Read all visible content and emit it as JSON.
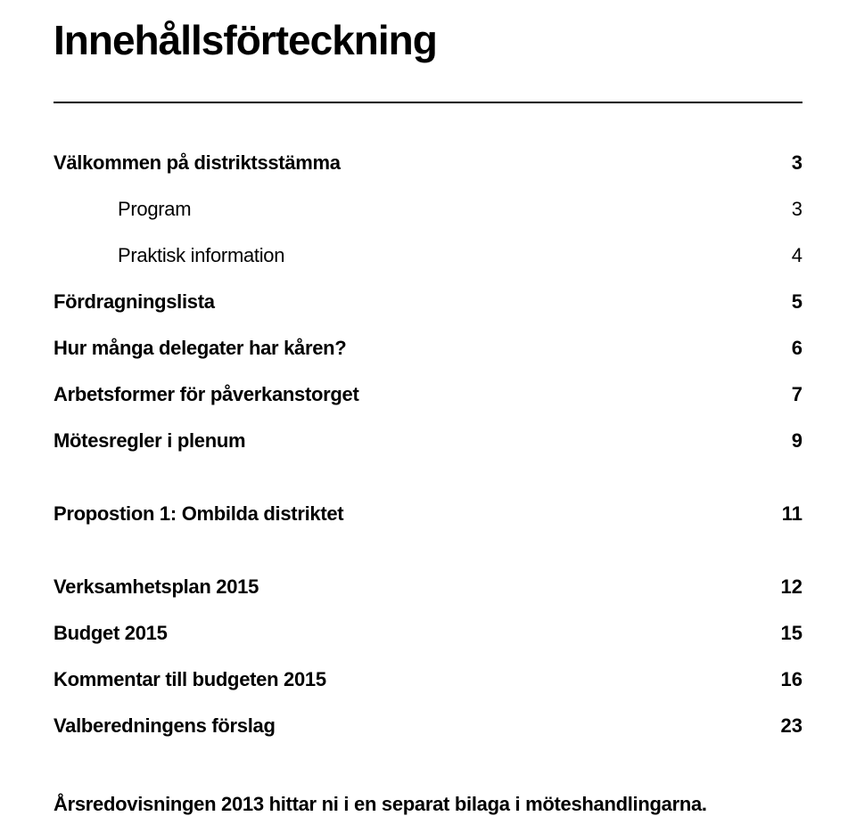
{
  "title": "Innehållsförteckning",
  "toc": [
    {
      "label": "Välkommen på distriktsstämma",
      "page": "3",
      "bold": true,
      "indent": 0
    },
    {
      "label": "Program",
      "page": "3",
      "bold": false,
      "indent": 1
    },
    {
      "label": "Praktisk information",
      "page": "4",
      "bold": false,
      "indent": 1
    },
    {
      "label": "Fördragningslista",
      "page": "5",
      "bold": true,
      "indent": 0
    },
    {
      "label": "Hur många delegater har kåren?",
      "page": "6",
      "bold": true,
      "indent": 0
    },
    {
      "label": "Arbetsformer för påverkanstorget",
      "page": "7",
      "bold": true,
      "indent": 0
    },
    {
      "label": "Mötesregler i plenum",
      "page": "9",
      "bold": true,
      "indent": 0,
      "gapAfter": "large"
    },
    {
      "label": "Propostion 1: Ombilda distriktet",
      "page": "11",
      "bold": true,
      "indent": 0,
      "gapAfter": "large"
    },
    {
      "label": "Verksamhetsplan 2015",
      "page": "12",
      "bold": true,
      "indent": 0
    },
    {
      "label": "Budget 2015",
      "page": "15",
      "bold": true,
      "indent": 0
    },
    {
      "label": "Kommentar till budgeten 2015",
      "page": "16",
      "bold": true,
      "indent": 0
    },
    {
      "label": "Valberedningens förslag",
      "page": "23",
      "bold": true,
      "indent": 0
    }
  ],
  "footnote": "Årsredovisningen 2013 hittar ni i en separat bilaga i möteshandlingarna.",
  "style": {
    "background_color": "#ffffff",
    "text_color": "#000000",
    "title_fontsize": 46,
    "toc_fontsize": 22,
    "footnote_fontsize": 22,
    "divider_color": "#000000"
  }
}
